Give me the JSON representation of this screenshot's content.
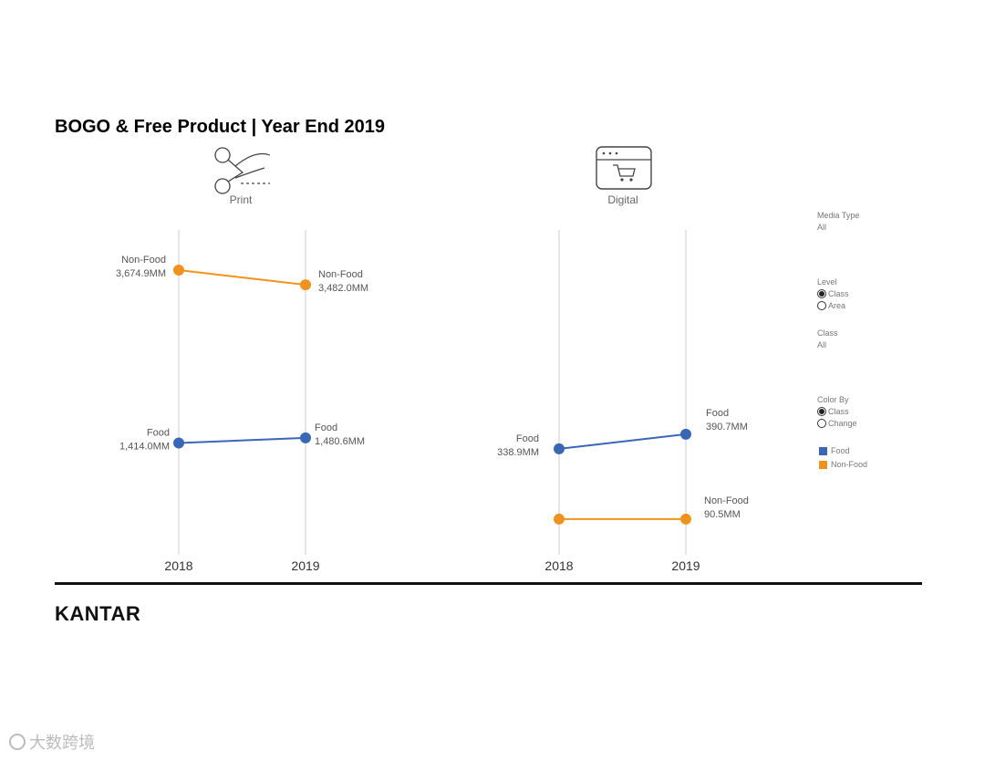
{
  "title": "BOGO & Free Product | Year End 2019",
  "colors": {
    "food": "#3a66b6",
    "non_food": "#f0921e",
    "axis_line": "#cccccc"
  },
  "panels": [
    {
      "label": "Print",
      "icon": "scissors-coupon-icon"
    },
    {
      "label": "Digital",
      "icon": "shopping-cart-browser-icon"
    }
  ],
  "chart_data": [
    {
      "type": "line",
      "title": "Print",
      "x": [
        "2018",
        "2019"
      ],
      "unit": "MM",
      "series": [
        {
          "name": "Non-Food",
          "values": [
            3674.9,
            3482.0
          ],
          "labels": [
            "3,674.9MM",
            "3,482.0MM"
          ]
        },
        {
          "name": "Food",
          "values": [
            1414.0,
            1480.6
          ],
          "labels": [
            "1,414.0MM",
            "1,480.6MM"
          ]
        }
      ]
    },
    {
      "type": "line",
      "title": "Digital",
      "x": [
        "2018",
        "2019"
      ],
      "unit": "MM",
      "series": [
        {
          "name": "Food",
          "values": [
            338.9,
            390.7
          ],
          "labels": [
            "338.9MM",
            "390.7MM"
          ]
        },
        {
          "name": "Non-Food",
          "values": [
            90.5,
            90.5
          ],
          "labels": [
            "",
            "90.5MM"
          ]
        }
      ]
    }
  ],
  "controls": {
    "media_type": {
      "label": "Media Type",
      "value": "All"
    },
    "level": {
      "label": "Level",
      "options": [
        "Class",
        "Area"
      ],
      "selected": "Class"
    },
    "class": {
      "label": "Class",
      "value": "All"
    },
    "color_by": {
      "label": "Color By",
      "options": [
        "Class",
        "Change"
      ],
      "selected": "Class"
    },
    "legend": [
      {
        "name": "Food"
      },
      {
        "name": "Non-Food"
      }
    ]
  },
  "footer": {
    "brand": "KANTAR"
  },
  "watermark": {
    "text": "大数跨境"
  }
}
